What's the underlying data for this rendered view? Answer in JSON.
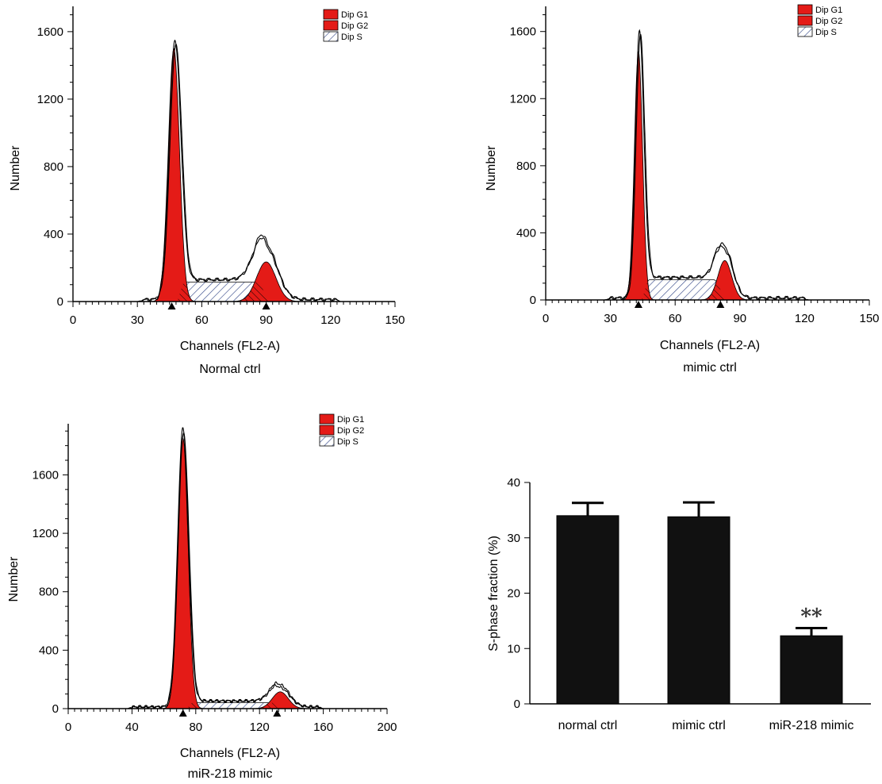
{
  "legend_labels": [
    "Dip G1",
    "Dip G2",
    "Dip S"
  ],
  "colors": {
    "g1_g2_fill": "#e41b17",
    "s_phase": "hatched #3a4d8c",
    "bars": "#111111"
  },
  "chart_data": [
    {
      "type": "area",
      "subtitle": "Normal ctrl",
      "xlabel": "Channels (FL2-A)",
      "ylabel": "Number",
      "xlim": [
        0,
        150
      ],
      "ylim": [
        0,
        1750
      ],
      "xticks": [
        0,
        30,
        60,
        90,
        120,
        150
      ],
      "yticks": [
        0,
        400,
        800,
        1200,
        1600
      ],
      "legend": [
        "Dip G1",
        "Dip G2",
        "Dip S"
      ],
      "series": [
        {
          "name": "Dip G1",
          "peak_x": 47,
          "peak_y": 1500,
          "sigma": 2.6
        },
        {
          "name": "Dip G2",
          "peak_x": 90,
          "peak_y": 235,
          "sigma": 4.5
        },
        {
          "name": "Dip S",
          "from": 50,
          "to": 88,
          "level": 115
        }
      ],
      "markers_x": [
        46,
        90
      ],
      "envelope_max": {
        "x": [
          47.5,
          90
        ],
        "y": [
          1540,
          320
        ]
      },
      "envelope_extent": [
        30,
        125
      ]
    },
    {
      "type": "area",
      "subtitle": "mimic ctrl",
      "xlabel": "Channels (FL2-A)",
      "ylabel": "Number",
      "xlim": [
        0,
        150
      ],
      "ylim": [
        0,
        1750
      ],
      "xticks": [
        0,
        30,
        60,
        90,
        120,
        150
      ],
      "yticks": [
        0,
        400,
        800,
        1200,
        1600
      ],
      "legend": [
        "Dip G1",
        "Dip G2",
        "Dip S"
      ],
      "series": [
        {
          "name": "Dip G1",
          "peak_x": 43,
          "peak_y": 1480,
          "sigma": 1.9
        },
        {
          "name": "Dip G2",
          "peak_x": 83,
          "peak_y": 235,
          "sigma": 3.2
        },
        {
          "name": "Dip S",
          "from": 46,
          "to": 80,
          "level": 120
        }
      ],
      "markers_x": [
        43,
        81
      ],
      "envelope_max": {
        "x": [
          43.5,
          83
        ],
        "y": [
          1600,
          300
        ]
      },
      "envelope_extent": [
        27,
        122
      ]
    },
    {
      "type": "area",
      "subtitle": "miR-218 mimic",
      "xlabel": "Channels (FL2-A)",
      "ylabel": "Number",
      "xlim": [
        0,
        200
      ],
      "ylim": [
        0,
        1950
      ],
      "xticks": [
        0,
        40,
        80,
        120,
        160,
        200
      ],
      "yticks": [
        0,
        400,
        800,
        1200,
        1600
      ],
      "legend": [
        "Dip G1",
        "Dip G2",
        "Dip S"
      ],
      "series": [
        {
          "name": "Dip G1",
          "peak_x": 72,
          "peak_y": 1850,
          "sigma": 3.2
        },
        {
          "name": "Dip G2",
          "peak_x": 133,
          "peak_y": 115,
          "sigma": 5
        },
        {
          "name": "Dip S",
          "from": 76,
          "to": 130,
          "level": 40
        }
      ],
      "markers_x": [
        72,
        131
      ],
      "envelope_max": {
        "x": [
          72,
          133
        ],
        "y": [
          1910,
          150
        ]
      },
      "envelope_extent": [
        37,
        160
      ]
    },
    {
      "type": "bar",
      "categories": [
        "normal ctrl",
        "mimic ctrl",
        "miR-218 mimic"
      ],
      "values": [
        34,
        33.8,
        12.3
      ],
      "errors": [
        2.3,
        2.6,
        1.4
      ],
      "ylabel": "S-phase fraction (%)",
      "ylim": [
        0,
        40
      ],
      "yticks": [
        0,
        10,
        20,
        30,
        40
      ],
      "annotations": [
        "",
        "",
        "**"
      ]
    }
  ]
}
